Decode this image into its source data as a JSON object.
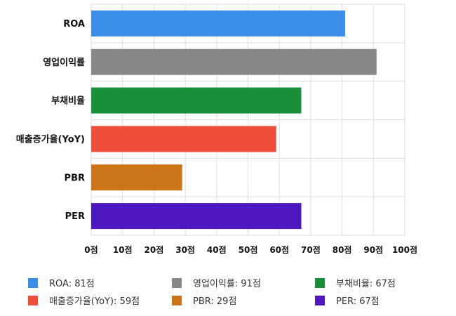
{
  "chart_data": {
    "type": "bar",
    "orientation": "horizontal",
    "categories": [
      "ROA",
      "영업이익률",
      "부채비율",
      "매출증가율(YoY)",
      "PBR",
      "PER"
    ],
    "values": [
      81,
      91,
      67,
      59,
      29,
      67
    ],
    "colors": [
      "#3a8ee6",
      "#888888",
      "#18903a",
      "#ee4e3a",
      "#cc7418",
      "#4e18c0"
    ],
    "xlim": [
      0,
      100
    ],
    "xticks": [
      0,
      10,
      20,
      30,
      40,
      50,
      60,
      70,
      80,
      90,
      100
    ],
    "tick_suffix": "점",
    "grid": true,
    "legend_position": "bottom",
    "legend": [
      {
        "label": "ROA: 81점",
        "color": "#3a8ee6"
      },
      {
        "label": "영업이익률: 91점",
        "color": "#888888"
      },
      {
        "label": "부채비율: 67점",
        "color": "#18903a"
      },
      {
        "label": "매출증가율(YoY): 59점",
        "color": "#ee4e3a"
      },
      {
        "label": "PBR: 29점",
        "color": "#cc7418"
      },
      {
        "label": "PER: 67점",
        "color": "#4e18c0"
      }
    ]
  }
}
